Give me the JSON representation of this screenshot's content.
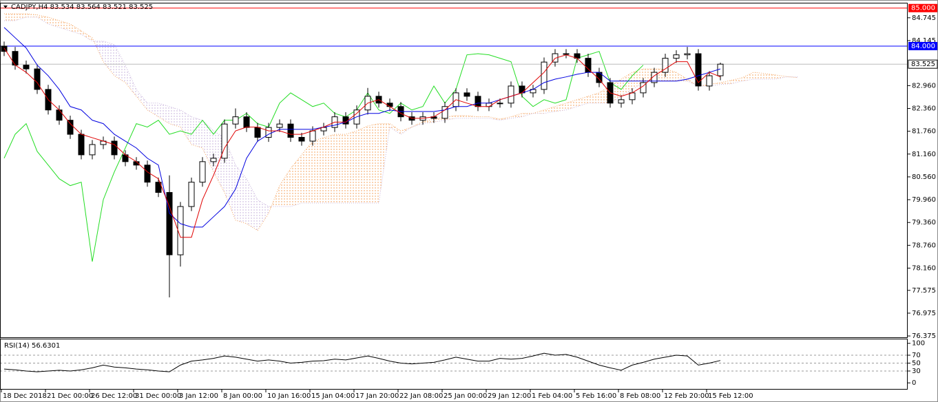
{
  "chart_data": {
    "type": "candlestick",
    "title": "CADJPY,H4  83.534 83.564 83.521 83.525",
    "categories": [
      "18 Dec 2018",
      null,
      null,
      null,
      "21 Dec 00:00",
      null,
      null,
      null,
      "26 Dec 12:00",
      null,
      null,
      null,
      "31 Dec 00:00",
      null,
      null,
      null,
      "3 Jan 12:00",
      null,
      null,
      null,
      "8 Jan 00:00",
      null,
      null,
      null,
      "10 Jan 16:00",
      null,
      null,
      null,
      "15 Jan 04:00",
      null,
      null,
      null,
      "17 Jan 20:00",
      null,
      null,
      null,
      "22 Jan 08:00",
      null,
      null,
      null,
      "25 Jan 00:00",
      null,
      null,
      null,
      "29 Jan 12:00",
      null,
      null,
      null,
      "1 Feb 04:00",
      null,
      null,
      null,
      "5 Feb 16:00",
      null,
      null,
      null,
      "8 Feb 08:00",
      null,
      null,
      null,
      "12 Feb 20:00",
      null,
      null,
      null,
      "15 Feb 12:00",
      null,
      null,
      null,
      null,
      null,
      null,
      null,
      null
    ],
    "ylim": [
      76.34,
      85.14
    ],
    "yticks": [
      84.745,
      84.145,
      {
        "value": 82.96,
        "label": "82.960"
      },
      {
        "value": 82.36,
        "label": "82.360"
      },
      {
        "value": 81.76,
        "label": "81.760"
      },
      {
        "value": 81.16,
        "label": "81.160"
      },
      {
        "value": 80.56,
        "label": "80.560"
      },
      {
        "value": 79.96,
        "label": "79.960"
      },
      {
        "value": 79.36,
        "label": "79.360"
      },
      {
        "value": 78.76,
        "label": "78.760"
      },
      {
        "value": 78.16,
        "label": "78.160"
      },
      77.575,
      76.975,
      76.375
    ],
    "levels": [
      {
        "value": 85,
        "label": "85.000",
        "color": "#ff0000"
      },
      {
        "value": 84,
        "label": "84.000",
        "color": "#0000ff"
      }
    ],
    "last_price": 83.525,
    "up_color": "#ffffff",
    "down_color": "#000000",
    "ohlc": {
      "open": [
        84.0,
        83.86,
        83.5,
        83.4,
        82.86,
        82.32,
        82.05,
        81.68,
        81.14,
        81.41,
        81.5,
        81.14,
        80.96,
        80.87,
        80.42,
        80.15,
        78.51,
        79.78,
        80.42,
        80.96,
        81.05,
        81.95,
        82.14,
        81.86,
        81.6,
        81.86,
        81.95,
        81.6,
        81.5,
        81.77,
        81.86,
        82.14,
        81.95,
        82.32,
        82.68,
        82.5,
        82.41,
        82.14,
        82.05,
        82.14,
        82.1,
        82.41,
        82.77,
        82.68,
        82.41,
        82.5,
        82.5,
        82.95,
        82.77,
        82.86,
        83.58,
        83.8,
        83.8,
        83.68,
        83.31,
        83.04,
        82.5,
        82.59,
        82.77,
        83.04,
        83.31,
        83.68,
        83.77,
        83.8,
        82.95,
        83.22,
        null,
        null,
        null,
        null,
        null,
        null,
        null
      ],
      "high": [
        84.12,
        83.98,
        83.62,
        83.52,
        82.98,
        82.44,
        82.17,
        81.8,
        81.53,
        81.62,
        81.62,
        81.26,
        81.08,
        80.99,
        80.54,
        80.6,
        79.9,
        80.54,
        81.08,
        81.17,
        82.07,
        82.36,
        82.26,
        81.98,
        81.98,
        82.07,
        82.07,
        81.72,
        81.89,
        81.98,
        82.26,
        82.26,
        82.44,
        82.9,
        82.8,
        82.62,
        82.53,
        82.26,
        82.26,
        82.26,
        82.53,
        82.89,
        82.89,
        82.8,
        82.62,
        82.62,
        83.07,
        83.07,
        82.98,
        83.7,
        83.92,
        83.92,
        83.92,
        83.8,
        83.43,
        83.16,
        82.71,
        82.89,
        83.16,
        83.43,
        83.8,
        83.89,
        83.98,
        83.92,
        83.34,
        83.564,
        null,
        null,
        null,
        null,
        null,
        null,
        null
      ],
      "low": [
        83.74,
        83.38,
        83.28,
        82.74,
        82.2,
        81.93,
        81.56,
        81.02,
        81.02,
        81.29,
        81.02,
        80.84,
        80.75,
        80.3,
        80.03,
        77.39,
        78.2,
        79.66,
        80.3,
        80.84,
        80.93,
        81.83,
        81.74,
        81.48,
        81.48,
        81.74,
        81.48,
        81.38,
        81.38,
        81.65,
        81.74,
        81.83,
        81.83,
        82.2,
        82.38,
        82.29,
        82.02,
        81.93,
        81.93,
        81.98,
        81.98,
        82.29,
        82.56,
        82.29,
        82.29,
        82.38,
        82.38,
        82.65,
        82.65,
        82.74,
        83.46,
        83.68,
        83.56,
        83.19,
        82.92,
        82.38,
        82.38,
        82.47,
        82.65,
        82.92,
        83.19,
        83.56,
        83.65,
        82.83,
        82.83,
        83.1,
        null,
        null,
        null,
        null,
        null,
        null,
        null
      ],
      "close": [
        83.86,
        83.5,
        83.4,
        82.86,
        82.32,
        82.05,
        81.68,
        81.14,
        81.41,
        81.5,
        81.14,
        80.96,
        80.87,
        80.42,
        80.15,
        78.51,
        79.78,
        80.42,
        80.96,
        81.05,
        81.95,
        82.14,
        81.86,
        81.6,
        81.86,
        81.95,
        81.6,
        81.5,
        81.77,
        81.86,
        82.14,
        81.95,
        82.32,
        82.68,
        82.5,
        82.41,
        82.14,
        82.05,
        82.14,
        82.1,
        82.41,
        82.77,
        82.68,
        82.41,
        82.5,
        82.5,
        82.95,
        82.77,
        82.86,
        83.58,
        83.8,
        83.8,
        83.68,
        83.31,
        83.04,
        82.5,
        82.59,
        82.77,
        83.04,
        83.31,
        83.68,
        83.77,
        83.8,
        82.95,
        83.22,
        83.525,
        null,
        null,
        null,
        null,
        null,
        null,
        null
      ]
    },
    "tenkan": {
      "color": "#e00000",
      "values": [
        83.95,
        83.5,
        83.31,
        83.04,
        82.59,
        82.32,
        81.96,
        81.68,
        81.59,
        81.5,
        81.41,
        81.14,
        80.96,
        80.69,
        80.51,
        79.78,
        78.97,
        78.97,
        79.96,
        80.6,
        81.32,
        81.77,
        81.87,
        81.87,
        81.77,
        81.77,
        81.68,
        81.68,
        81.77,
        81.87,
        82.0,
        82.0,
        82.23,
        82.5,
        82.59,
        82.41,
        82.23,
        82.1,
        82.1,
        82.14,
        82.32,
        82.59,
        82.5,
        82.41,
        82.41,
        82.59,
        82.68,
        82.77,
        83.04,
        83.31,
        83.68,
        83.77,
        83.68,
        83.4,
        83.13,
        82.77,
        82.68,
        82.77,
        82.95,
        83.22,
        83.4,
        83.59,
        83.59,
        83.04,
        83.31,
        83.19,
        null,
        null,
        null,
        null,
        null,
        null,
        null
      ]
    },
    "kijun": {
      "color": "#0000e0",
      "values": [
        84.49,
        84.22,
        83.95,
        83.5,
        83.22,
        82.86,
        82.41,
        82.32,
        82.05,
        81.96,
        81.68,
        81.5,
        81.32,
        81.05,
        80.87,
        79.6,
        79.33,
        79.24,
        79.24,
        79.51,
        79.78,
        80.24,
        81.05,
        81.5,
        81.68,
        81.81,
        81.81,
        81.81,
        81.81,
        81.87,
        81.92,
        82.0,
        82.14,
        82.23,
        82.23,
        82.32,
        82.28,
        82.28,
        82.28,
        82.28,
        82.32,
        82.41,
        82.41,
        82.5,
        82.5,
        82.59,
        82.68,
        82.77,
        82.86,
        83.04,
        83.13,
        83.19,
        83.26,
        83.31,
        83.31,
        83.08,
        83.08,
        83.08,
        83.08,
        83.08,
        83.08,
        83.08,
        83.13,
        83.22,
        83.31,
        83.4,
        null,
        null,
        null,
        null,
        null,
        null,
        null
      ]
    },
    "chikou": {
      "color": "#22dd22",
      "values": [
        81.05,
        81.68,
        81.96,
        81.23,
        80.87,
        80.51,
        80.33,
        80.42,
        78.33,
        79.96,
        80.69,
        81.32,
        81.96,
        81.87,
        82.05,
        81.68,
        81.77,
        81.68,
        82.05,
        81.68,
        82.05,
        82.05,
        82.23,
        81.96,
        81.87,
        82.5,
        82.77,
        82.59,
        82.41,
        82.5,
        82.23,
        82.14,
        82.32,
        82.77,
        82.32,
        82.23,
        82.5,
        82.32,
        82.41,
        82.95,
        82.5,
        82.86,
        83.77,
        83.8,
        83.77,
        83.68,
        83.59,
        82.68,
        82.41,
        82.59,
        82.5,
        82.59,
        83.68,
        83.77,
        83.86,
        83.04,
        82.86,
        83.22,
        83.5,
        null,
        null,
        null,
        null,
        null,
        null,
        null,
        null,
        null,
        null,
        null,
        null,
        null,
        null
      ]
    },
    "span_a": {
      "color": "#f4a460",
      "values": [
        84.85,
        84.85,
        84.85,
        84.82,
        84.76,
        84.67,
        84.58,
        84.4,
        84.22,
        83.59,
        83.22,
        83.04,
        82.68,
        82.32,
        82.14,
        81.96,
        81.87,
        81.41,
        81.32,
        80.69,
        80.15,
        79.42,
        79.33,
        79.15,
        79.6,
        80.33,
        80.78,
        81.14,
        81.5,
        81.59,
        81.68,
        81.68,
        81.77,
        81.9,
        81.96,
        81.96,
        81.77,
        81.87,
        82.01,
        82.08,
        82.14,
        82.17,
        82.17,
        82.14,
        82.14,
        82.08,
        82.14,
        82.23,
        82.23,
        82.32,
        82.41,
        82.5,
        82.59,
        82.68,
        82.77,
        82.95,
        83.13,
        83.31,
        83.4,
        83.4,
        83.4,
        83.31,
        83.13,
        82.95,
        82.99,
        83.04,
        83.1,
        83.17,
        83.31,
        83.28,
        83.24,
        83.2,
        83.17
      ]
    },
    "span_b": {
      "color": "#c8b4dc",
      "values": [
        84.67,
        84.67,
        84.76,
        84.76,
        84.58,
        84.49,
        84.4,
        84.31,
        84.13,
        84.13,
        84.04,
        83.5,
        82.86,
        82.5,
        82.5,
        82.41,
        82.32,
        82.14,
        82.05,
        81.77,
        81.59,
        80.87,
        80.51,
        79.96,
        79.78,
        79.78,
        79.78,
        79.87,
        79.87,
        79.87,
        79.87,
        79.87,
        79.87,
        79.87,
        79.87,
        81.87,
        81.68,
        81.87,
        81.96,
        82.0,
        82.05,
        82.1,
        82.1,
        82.1,
        82.1,
        82.05,
        82.1,
        82.14,
        82.23,
        82.23,
        82.28,
        82.32,
        82.41,
        82.5,
        82.5,
        82.5,
        82.68,
        82.86,
        83.04,
        83.08,
        83.08,
        83.08,
        83.08,
        82.95,
        82.95,
        82.99,
        83.01,
        83.08,
        83.13,
        83.13,
        83.13,
        83.19,
        83.19
      ]
    },
    "rsi": {
      "label": "RSI(14) 56.6301",
      "color": "#000000",
      "ylim": [
        -17,
        110
      ],
      "yticks": [
        100,
        70,
        50,
        30,
        0
      ],
      "levels": [
        70,
        50,
        30
      ],
      "values": [
        35,
        33,
        30,
        28,
        30,
        32,
        30,
        33,
        38,
        45,
        40,
        38,
        35,
        33,
        30,
        28,
        45,
        55,
        58,
        62,
        68,
        65,
        60,
        55,
        58,
        55,
        50,
        52,
        55,
        56,
        60,
        58,
        63,
        68,
        62,
        55,
        50,
        48,
        50,
        52,
        58,
        65,
        60,
        55,
        55,
        62,
        60,
        62,
        68,
        75,
        70,
        72,
        65,
        55,
        45,
        38,
        32,
        45,
        52,
        60,
        65,
        70,
        68,
        45,
        50,
        56.63,
        null,
        null,
        null,
        null,
        null,
        null,
        null
      ]
    }
  }
}
